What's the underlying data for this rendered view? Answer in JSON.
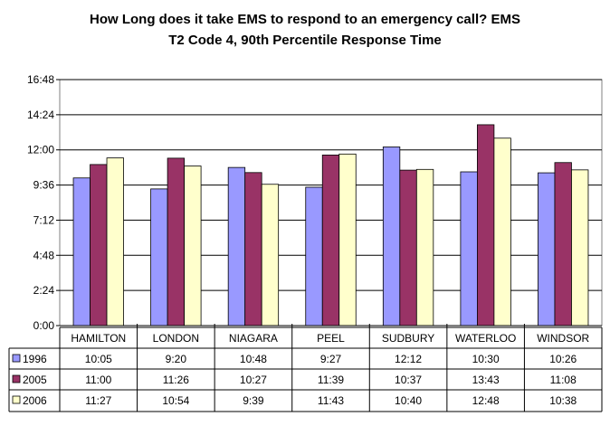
{
  "chart_data": {
    "type": "bar",
    "title_lines": [
      "How Long does it take EMS to respond to an emergency call? EMS",
      "T2 Code 4, 90th Percentile Response Time"
    ],
    "categories": [
      "HAMILTON",
      "LONDON",
      "NIAGARA",
      "PEEL",
      "SUDBURY",
      "WATERLOO",
      "WINDSOR"
    ],
    "series": [
      {
        "name": "1996",
        "color": "#9999ff",
        "values": [
          "10:05",
          "9:20",
          "10:48",
          "9:27",
          "12:12",
          "10:30",
          "10:26"
        ]
      },
      {
        "name": "2005",
        "color": "#993366",
        "values": [
          "11:00",
          "11:26",
          "10:27",
          "11:39",
          "10:37",
          "13:43",
          "11:08"
        ]
      },
      {
        "name": "2006",
        "color": "#ffffcc",
        "values": [
          "11:27",
          "10:54",
          "9:39",
          "11:43",
          "10:40",
          "12:48",
          "10:38"
        ]
      }
    ],
    "y_ticks": [
      "0:00",
      "2:24",
      "4:48",
      "7:12",
      "9:36",
      "12:00",
      "14:24",
      "16:48"
    ],
    "ylim": [
      "0:00",
      "16:48"
    ],
    "grid": true,
    "legend": "data-table"
  }
}
